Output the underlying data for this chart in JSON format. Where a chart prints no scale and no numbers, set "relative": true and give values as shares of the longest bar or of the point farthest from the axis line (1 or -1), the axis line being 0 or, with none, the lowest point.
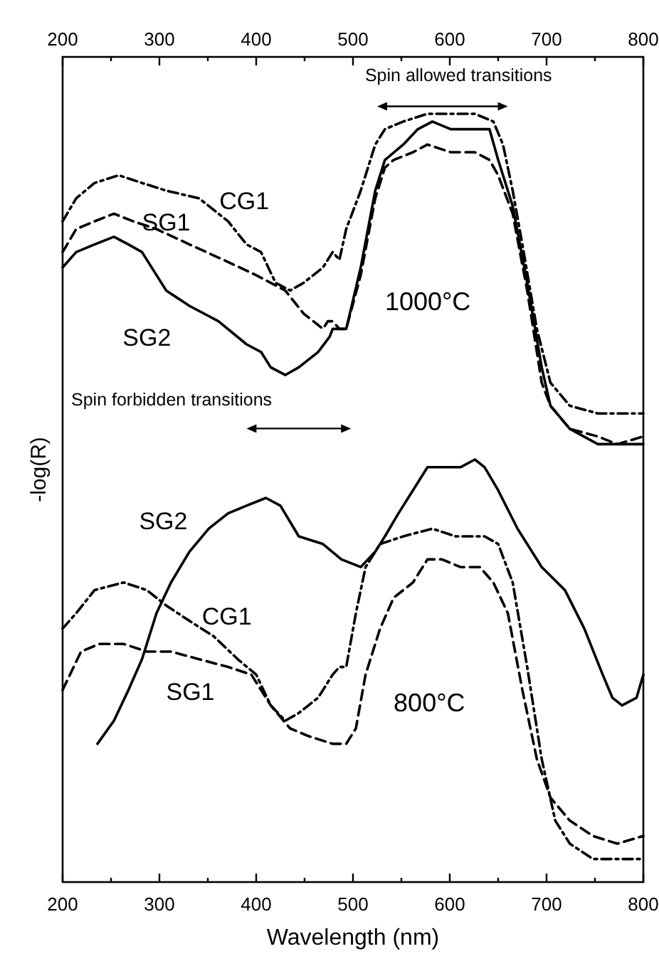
{
  "chart_data": {
    "type": "line",
    "relative": true,
    "xlabel": "Wavelength (nm)",
    "ylabel": "-log(R)",
    "xlim": [
      200,
      800
    ],
    "xticks": [
      200,
      {
        "value": 250,
        "label": null
      },
      300,
      {
        "value": 350,
        "label": null
      },
      400,
      {
        "value": 450,
        "label": null
      },
      500,
      {
        "value": 550,
        "label": null
      },
      600,
      {
        "value": 650,
        "label": null
      },
      700,
      {
        "value": 750,
        "label": null
      },
      800
    ],
    "x2lim": [
      200,
      800
    ],
    "x2ticks": [
      200,
      {
        "value": 250,
        "label": null
      },
      300,
      {
        "value": 350,
        "label": null
      },
      400,
      {
        "value": 450,
        "label": null
      },
      500,
      {
        "value": 550,
        "label": null
      },
      600,
      {
        "value": 650,
        "label": null
      },
      700,
      {
        "value": 750,
        "label": null
      },
      800
    ],
    "grid": false,
    "legend": false,
    "marker": "none",
    "annotations": [
      "Spin allowed transitions",
      "Spin forbidden transitions",
      "1000°C",
      "800°C"
    ],
    "series": [
      {
        "name": "CG1",
        "color": "#000000",
        "line_style": "dashdot",
        "x": [
          200,
          214,
          233,
          258,
          282,
          307,
          341,
          371,
          390,
          405,
          420,
          435,
          449,
          469,
          479,
          486,
          493,
          508,
          523,
          533,
          552,
          577,
          601,
          626,
          645,
          655,
          665,
          675,
          690,
          704,
          724,
          753,
          773,
          800
        ],
        "values": [
          0.86,
          0.89,
          0.91,
          0.92,
          0.91,
          0.9,
          0.89,
          0.86,
          0.83,
          0.82,
          0.78,
          0.77,
          0.78,
          0.8,
          0.82,
          0.81,
          0.85,
          0.9,
          0.96,
          0.98,
          0.99,
          1.0,
          1.0,
          1.0,
          0.99,
          0.96,
          0.9,
          0.83,
          0.72,
          0.65,
          0.62,
          0.61,
          0.61,
          0.61
        ]
      },
      {
        "name": "SG1",
        "color": "#000000",
        "line_style": "dashed",
        "x": [
          200,
          214,
          233,
          253,
          273,
          297,
          331,
          366,
          400,
          430,
          449,
          469,
          474,
          479,
          486,
          493,
          508,
          523,
          533,
          542,
          562,
          577,
          601,
          626,
          641,
          650,
          665,
          680,
          695,
          704,
          724,
          753,
          773,
          800
        ],
        "values": [
          0.82,
          0.85,
          0.86,
          0.87,
          0.86,
          0.85,
          0.83,
          0.81,
          0.79,
          0.77,
          0.74,
          0.72,
          0.73,
          0.73,
          0.72,
          0.72,
          0.79,
          0.89,
          0.93,
          0.94,
          0.95,
          0.96,
          0.95,
          0.95,
          0.94,
          0.92,
          0.87,
          0.77,
          0.65,
          0.62,
          0.59,
          0.58,
          0.57,
          0.58
        ]
      },
      {
        "name": "SG2",
        "color": "#000000",
        "line_style": "solid",
        "x": [
          200,
          214,
          233,
          253,
          268,
          282,
          307,
          331,
          361,
          390,
          405,
          415,
          430,
          444,
          464,
          476,
          479,
          486,
          493,
          508,
          523,
          533,
          552,
          567,
          582,
          601,
          616,
          626,
          641,
          650,
          665,
          680,
          695,
          704,
          724,
          753,
          773,
          800
        ],
        "values": [
          0.8,
          0.82,
          0.83,
          0.84,
          0.83,
          0.82,
          0.77,
          0.75,
          0.73,
          0.7,
          0.69,
          0.67,
          0.66,
          0.67,
          0.69,
          0.71,
          0.72,
          0.72,
          0.72,
          0.8,
          0.9,
          0.94,
          0.96,
          0.98,
          0.99,
          0.98,
          0.98,
          0.98,
          0.98,
          0.94,
          0.88,
          0.78,
          0.67,
          0.62,
          0.59,
          0.57,
          0.57,
          0.57
        ]
      },
      {
        "name": "SG2",
        "color": "#000000",
        "line_style": "solid",
        "x": [
          236,
          253,
          268,
          282,
          297,
          312,
          331,
          351,
          371,
          390,
          410,
          425,
          444,
          469,
          488,
          508,
          523,
          533,
          547,
          562,
          577,
          596,
          611,
          626,
          636,
          650,
          670,
          695,
          719,
          739,
          758,
          768,
          778,
          793,
          800
        ],
        "values": [
          0.18,
          0.21,
          0.25,
          0.29,
          0.35,
          0.39,
          0.43,
          0.46,
          0.48,
          0.49,
          0.5,
          0.49,
          0.45,
          0.44,
          0.42,
          0.41,
          0.43,
          0.45,
          0.48,
          0.51,
          0.54,
          0.54,
          0.54,
          0.55,
          0.54,
          0.51,
          0.46,
          0.41,
          0.38,
          0.33,
          0.27,
          0.24,
          0.23,
          0.24,
          0.27
        ]
      },
      {
        "name": "CG1",
        "color": "#000000",
        "line_style": "dashdot",
        "x": [
          200,
          214,
          233,
          263,
          287,
          307,
          331,
          356,
          381,
          400,
          415,
          430,
          444,
          464,
          479,
          486,
          493,
          503,
          513,
          528,
          552,
          582,
          606,
          636,
          650,
          665,
          680,
          695,
          709,
          724,
          748,
          773,
          800
        ],
        "values": [
          0.33,
          0.35,
          0.38,
          0.39,
          0.38,
          0.36,
          0.34,
          0.32,
          0.29,
          0.27,
          0.23,
          0.21,
          0.22,
          0.24,
          0.27,
          0.28,
          0.28,
          0.35,
          0.41,
          0.44,
          0.45,
          0.46,
          0.45,
          0.45,
          0.44,
          0.39,
          0.28,
          0.16,
          0.08,
          0.05,
          0.03,
          0.03,
          0.03
        ]
      },
      {
        "name": "SG1",
        "color": "#000000",
        "line_style": "dashed",
        "x": [
          200,
          219,
          238,
          263,
          287,
          312,
          341,
          371,
          395,
          415,
          435,
          454,
          479,
          493,
          503,
          513,
          528,
          542,
          562,
          577,
          592,
          611,
          631,
          645,
          660,
          675,
          690,
          704,
          724,
          748,
          773,
          800
        ],
        "values": [
          0.25,
          0.3,
          0.31,
          0.31,
          0.3,
          0.3,
          0.29,
          0.28,
          0.27,
          0.23,
          0.2,
          0.19,
          0.18,
          0.18,
          0.2,
          0.27,
          0.33,
          0.37,
          0.39,
          0.42,
          0.42,
          0.41,
          0.41,
          0.39,
          0.35,
          0.25,
          0.16,
          0.11,
          0.08,
          0.06,
          0.05,
          0.06
        ]
      }
    ]
  }
}
